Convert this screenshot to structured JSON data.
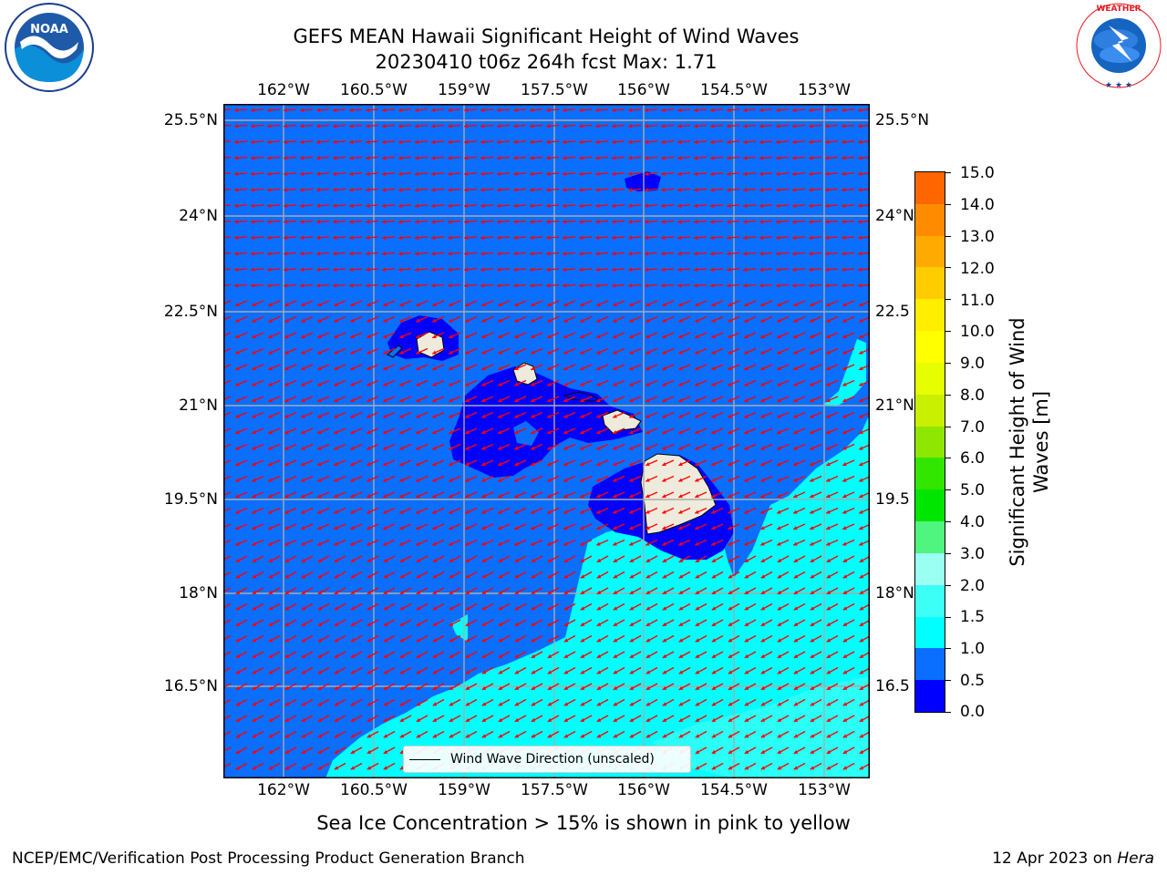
{
  "header": {
    "title_line1": "GEFS MEAN Hawaii Significant Height of Wind Waves",
    "title_line2": "20230410 t06z 264h fcst   Max: 1.71"
  },
  "logos": {
    "noaa_text": "NOAA",
    "noaa_ring": "NATIONAL OCEANIC AND ATMOSPHERIC ADMINISTRATION · U.S. DEPARTMENT OF COMMERCE",
    "nws_ring": "NATIONAL WEATHER SERVICE"
  },
  "map": {
    "lon_labels": [
      "162°W",
      "160.5°W",
      "159°W",
      "157.5°W",
      "156°W",
      "154.5°W",
      "153°W"
    ],
    "lat_labels": [
      "25.5°N",
      "24°N",
      "22.5°N",
      "21°N",
      "19.5°N",
      "18°N",
      "16.5°N"
    ],
    "right_lat_labels": [
      "25.5°N",
      "24°N",
      "22.5",
      "21°N",
      "19.5",
      "18°N",
      "16.5"
    ],
    "legend_label": "Wind Wave Direction (unscaled)",
    "arrow_color": "#ff0000",
    "land_color": "#eeebdc",
    "colors": {
      "band_0_05": "#0000ff",
      "band_05_1": "#0a6eff",
      "band_1_15": "#00ffff",
      "band_15_2": "#3cfff5"
    }
  },
  "colorbar": {
    "title_line1": "Significant Height of Wind",
    "title_line2": "Waves [m]",
    "tick_labels": [
      "15.0",
      "14.0",
      "13.0",
      "12.0",
      "11.0",
      "10.0",
      "9.0",
      "8.0",
      "7.0",
      "6.0",
      "5.0",
      "4.0",
      "3.0",
      "2.0",
      "1.5",
      "1.0",
      "0.5",
      "0.0"
    ],
    "band_colors": [
      "#0000ff",
      "#0a6eff",
      "#00ffff",
      "#3cfff5",
      "#9bfff2",
      "#4ff57e",
      "#00e600",
      "#33e600",
      "#8fe600",
      "#c8f000",
      "#e6ff00",
      "#ffff00",
      "#ffee00",
      "#ffcc00",
      "#ffaa00",
      "#ff8c00",
      "#ff6600",
      "#ff3c00",
      "#ff0000"
    ]
  },
  "footer": {
    "sea_ice_note": "Sea Ice Concentration > 15% is shown in pink to yellow",
    "branch": "NCEP/EMC/Verification Post Processing Product Generation Branch",
    "date": "12 Apr 2023 on",
    "machine": "Hera"
  }
}
